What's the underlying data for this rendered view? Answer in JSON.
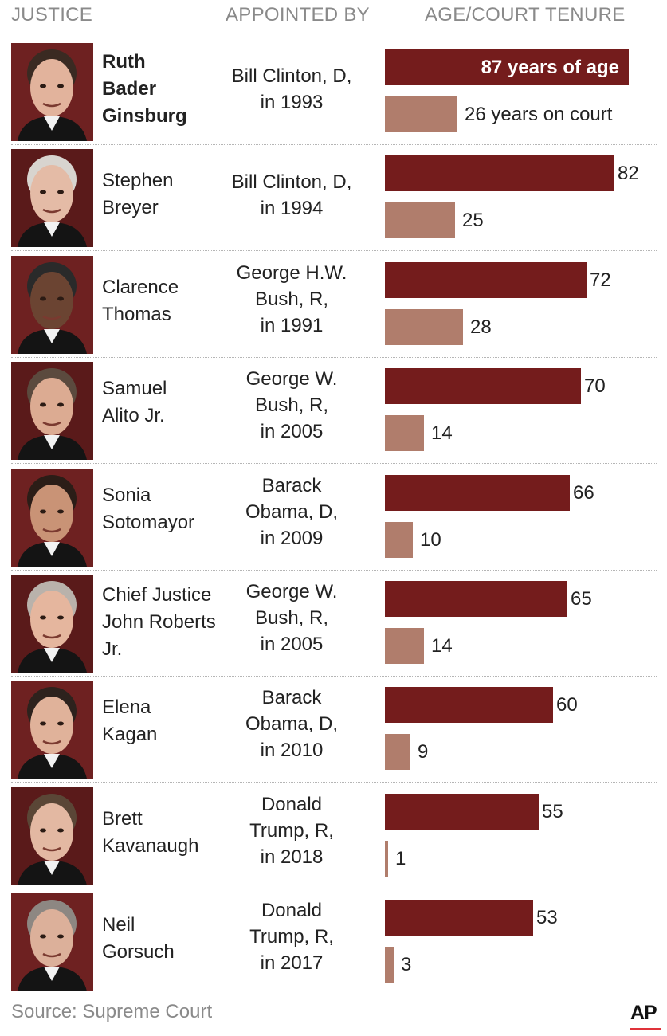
{
  "headers": {
    "justice": "JUSTICE",
    "appointed_by": "APPOINTED BY",
    "age_tenure": "AGE/COURT TENURE"
  },
  "justices": [
    {
      "name_lines": [
        "Ruth",
        "Bader",
        "Ginsburg"
      ],
      "appointed_lines": [
        "Bill Clinton, D,",
        "in 1993"
      ],
      "age_label": "87 years of age",
      "tenure_label": "26 years on court"
    },
    {
      "name_lines": [
        "Stephen",
        "Breyer"
      ],
      "appointed_lines": [
        "Bill Clinton, D,",
        "in 1994"
      ],
      "age_label": "82",
      "tenure_label": "25"
    },
    {
      "name_lines": [
        "Clarence",
        "Thomas"
      ],
      "appointed_lines": [
        "George H.W.",
        "Bush, R,",
        "in 1991"
      ],
      "age_label": "72",
      "tenure_label": "28"
    },
    {
      "name_lines": [
        "Samuel",
        "Alito Jr."
      ],
      "appointed_lines": [
        "George W.",
        "Bush, R,",
        "in 2005"
      ],
      "age_label": "70",
      "tenure_label": "14"
    },
    {
      "name_lines": [
        "Sonia",
        "Sotomayor"
      ],
      "appointed_lines": [
        "Barack",
        "Obama, D,",
        "in 2009"
      ],
      "age_label": "66",
      "tenure_label": "10"
    },
    {
      "name_lines": [
        "Chief Justice",
        "John Roberts",
        "Jr."
      ],
      "appointed_lines": [
        "George W.",
        "Bush, R,",
        "in 2005"
      ],
      "age_label": "65",
      "tenure_label": "14"
    },
    {
      "name_lines": [
        "Elena",
        "Kagan"
      ],
      "appointed_lines": [
        "Barack",
        "Obama, D,",
        "in 2010"
      ],
      "age_label": "60",
      "tenure_label": "9"
    },
    {
      "name_lines": [
        "Brett",
        "Kavanaugh"
      ],
      "appointed_lines": [
        "Donald",
        "Trump, R,",
        "in 2018"
      ],
      "age_label": "55",
      "tenure_label": "1"
    },
    {
      "name_lines": [
        "Neil",
        "Gorsuch"
      ],
      "appointed_lines": [
        "Donald",
        "Trump, R,",
        "in 2017"
      ],
      "age_label": "53",
      "tenure_label": "3"
    }
  ],
  "chart_data": {
    "type": "bar",
    "title": "AGE/COURT TENURE",
    "categories": [
      "Ruth Bader Ginsburg",
      "Stephen Breyer",
      "Clarence Thomas",
      "Samuel Alito Jr.",
      "Sonia Sotomayor",
      "Chief Justice John Roberts Jr.",
      "Elena Kagan",
      "Brett Kavanaugh",
      "Neil Gorsuch"
    ],
    "series": [
      {
        "name": "Age",
        "values": [
          87,
          82,
          72,
          70,
          66,
          65,
          60,
          55,
          53
        ],
        "color": "#741c1c"
      },
      {
        "name": "Court tenure",
        "values": [
          26,
          25,
          28,
          14,
          10,
          14,
          9,
          1,
          3
        ],
        "color": "#b07d6c"
      }
    ],
    "orientation": "horizontal",
    "xlim": [
      0,
      87
    ],
    "grid": false
  },
  "footer": {
    "source": "Source: Supreme Court",
    "logo_text": "AP"
  },
  "colors": {
    "age_bar": "#741c1c",
    "tenure_bar": "#b07d6c",
    "accent": "#e0323a"
  }
}
